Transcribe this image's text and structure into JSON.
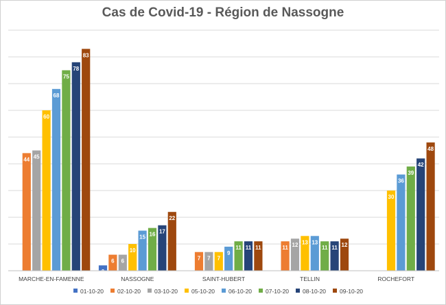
{
  "chart_data": {
    "type": "bar",
    "title": "Cas de Covid-19 - Région de Nassogne",
    "xlabel": "",
    "ylabel": "",
    "ylim": [
      0,
      90
    ],
    "grid": true,
    "legend_position": "bottom",
    "categories": [
      "MARCHE-EN-FAMENNE",
      "NASSOGNE",
      "SAINT-HUBERT",
      "TELLIN",
      "ROCHEFORT"
    ],
    "series": [
      {
        "name": "01-10-20",
        "color": "#4472c4",
        "values": [
          null,
          2,
          null,
          null,
          null
        ]
      },
      {
        "name": "02-10-20",
        "color": "#ed7d31",
        "values": [
          44,
          6,
          7,
          11,
          null
        ]
      },
      {
        "name": "03-10-20",
        "color": "#a5a5a5",
        "values": [
          45,
          6,
          7,
          12,
          null
        ]
      },
      {
        "name": "05-10-20",
        "color": "#ffc000",
        "values": [
          60,
          10,
          7,
          13,
          30
        ]
      },
      {
        "name": "06-10-20",
        "color": "#5b9bd5",
        "values": [
          68,
          15,
          9,
          13,
          36
        ]
      },
      {
        "name": "07-10-20",
        "color": "#70ad47",
        "values": [
          75,
          16,
          11,
          11,
          39
        ]
      },
      {
        "name": "08-10-20",
        "color": "#264478",
        "values": [
          78,
          17,
          11,
          11,
          42
        ]
      },
      {
        "name": "09-10-20",
        "color": "#9e480e",
        "values": [
          83,
          22,
          11,
          12,
          48
        ]
      }
    ]
  }
}
